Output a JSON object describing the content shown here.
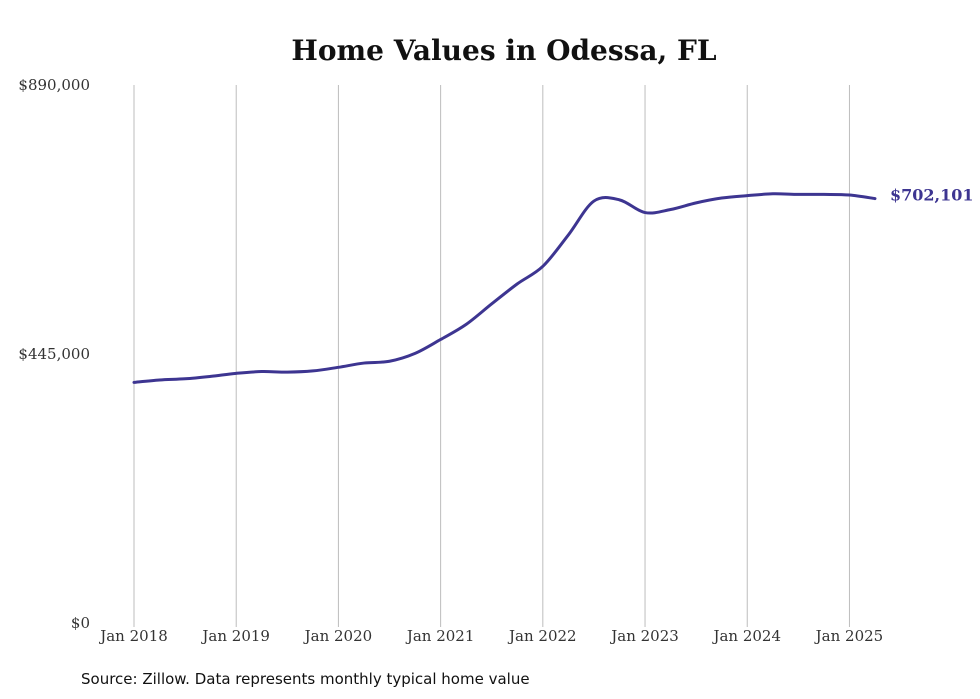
{
  "chart_data": {
    "type": "line",
    "title": "Home Values in Odessa, FL",
    "xlabel": "",
    "ylabel": "",
    "ylim": [
      0,
      890000
    ],
    "yticks": [
      {
        "value": 0,
        "label": "$0"
      },
      {
        "value": 445000,
        "label": "$445,000"
      },
      {
        "value": 890000,
        "label": "$890,000"
      }
    ],
    "xlim": [
      "2018-01",
      "2025-04"
    ],
    "xticks": [
      {
        "date": "2018-01",
        "label": "Jan 2018"
      },
      {
        "date": "2019-01",
        "label": "Jan 2019"
      },
      {
        "date": "2020-01",
        "label": "Jan 2020"
      },
      {
        "date": "2021-01",
        "label": "Jan 2021"
      },
      {
        "date": "2022-01",
        "label": "Jan 2022"
      },
      {
        "date": "2023-01",
        "label": "Jan 2023"
      },
      {
        "date": "2024-01",
        "label": "Jan 2024"
      },
      {
        "date": "2025-01",
        "label": "Jan 2025"
      }
    ],
    "grid": "vertical",
    "legend": "none",
    "series": [
      {
        "color": "#3d3591",
        "end_label": "$702,101",
        "points": [
          {
            "date": "2018-01",
            "value": 398000
          },
          {
            "date": "2018-04",
            "value": 402000
          },
          {
            "date": "2018-07",
            "value": 404000
          },
          {
            "date": "2018-10",
            "value": 408000
          },
          {
            "date": "2019-01",
            "value": 413000
          },
          {
            "date": "2019-04",
            "value": 416000
          },
          {
            "date": "2019-07",
            "value": 415000
          },
          {
            "date": "2019-10",
            "value": 417000
          },
          {
            "date": "2020-01",
            "value": 423000
          },
          {
            "date": "2020-04",
            "value": 430000
          },
          {
            "date": "2020-07",
            "value": 433000
          },
          {
            "date": "2020-10",
            "value": 446000
          },
          {
            "date": "2021-01",
            "value": 469000
          },
          {
            "date": "2021-04",
            "value": 494000
          },
          {
            "date": "2021-07",
            "value": 528000
          },
          {
            "date": "2021-10",
            "value": 561000
          },
          {
            "date": "2022-01",
            "value": 590000
          },
          {
            "date": "2022-04",
            "value": 642000
          },
          {
            "date": "2022-07",
            "value": 698000
          },
          {
            "date": "2022-10",
            "value": 700000
          },
          {
            "date": "2023-01",
            "value": 679000
          },
          {
            "date": "2023-04",
            "value": 684000
          },
          {
            "date": "2023-07",
            "value": 695000
          },
          {
            "date": "2023-10",
            "value": 703000
          },
          {
            "date": "2024-01",
            "value": 707000
          },
          {
            "date": "2024-04",
            "value": 710000
          },
          {
            "date": "2024-07",
            "value": 709000
          },
          {
            "date": "2024-10",
            "value": 709000
          },
          {
            "date": "2025-01",
            "value": 708000
          },
          {
            "date": "2025-04",
            "value": 702101
          }
        ]
      }
    ]
  },
  "source_note": "Source: Zillow. Data represents monthly typical home value"
}
